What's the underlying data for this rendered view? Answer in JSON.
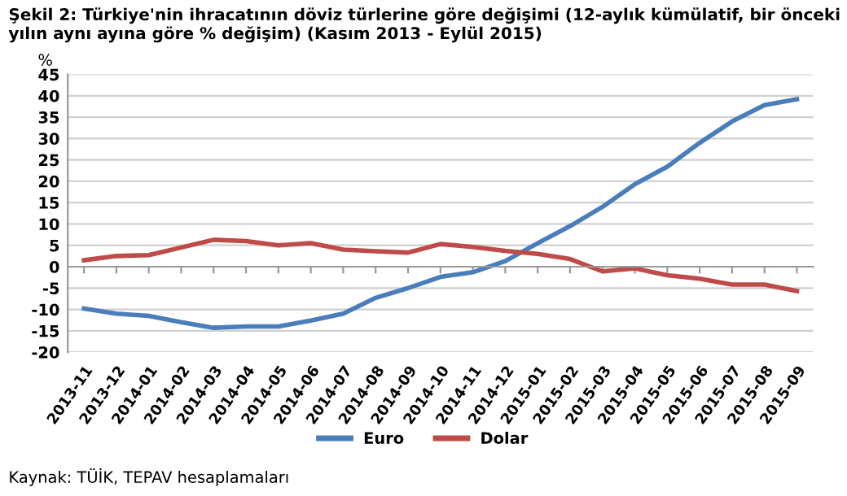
{
  "chart_data": {
    "type": "line",
    "title": "Şekil 2: Türkiye'nin ihracatının döviz türlerine göre değişimi (12-aylık kümülatif, bir önceki yılın aynı ayına göre % değişim) (Kasım 2013 - Eylül 2015)",
    "ylabel": "%",
    "categories": [
      "2013-11",
      "2013-12",
      "2014-01",
      "2014-02",
      "2014-03",
      "2014-04",
      "2014-05",
      "2014-06",
      "2014-07",
      "2014-08",
      "2014-09",
      "2014-10",
      "2014-11",
      "2014-12",
      "2015-01",
      "2015-02",
      "2015-03",
      "2015-04",
      "2015-05",
      "2015-06",
      "2015-07",
      "2015-08",
      "2015-09"
    ],
    "series": [
      {
        "name": "Euro",
        "color": "#4a7ebb",
        "values": [
          -9.8,
          -11,
          -11.5,
          -13,
          -14.3,
          -14,
          -14,
          -12.6,
          -11,
          -7.3,
          -5,
          -2.4,
          -1.3,
          1.3,
          5.5,
          9.5,
          14,
          19.3,
          23.4,
          29,
          34,
          37.8,
          39.2
        ]
      },
      {
        "name": "Dolar",
        "color": "#be4b48",
        "values": [
          1.5,
          2.5,
          2.7,
          4.5,
          6.3,
          6,
          5,
          5.5,
          4,
          3.6,
          3.3,
          5.3,
          4.6,
          3.7,
          3,
          1.8,
          -1.1,
          -0.4,
          -2,
          -2.8,
          -4.2,
          -4.2,
          -5.7
        ]
      }
    ],
    "ylim": [
      -20,
      45
    ],
    "yticks": [
      -20,
      -15,
      -10,
      -5,
      0,
      5,
      10,
      15,
      20,
      25,
      30,
      35,
      40,
      45
    ],
    "grid": "y",
    "legend": "bottom",
    "marker": "none",
    "line_style": "solid",
    "annotations": [
      "Kaynak: TÜİK, TEPAV hesaplamaları"
    ]
  }
}
